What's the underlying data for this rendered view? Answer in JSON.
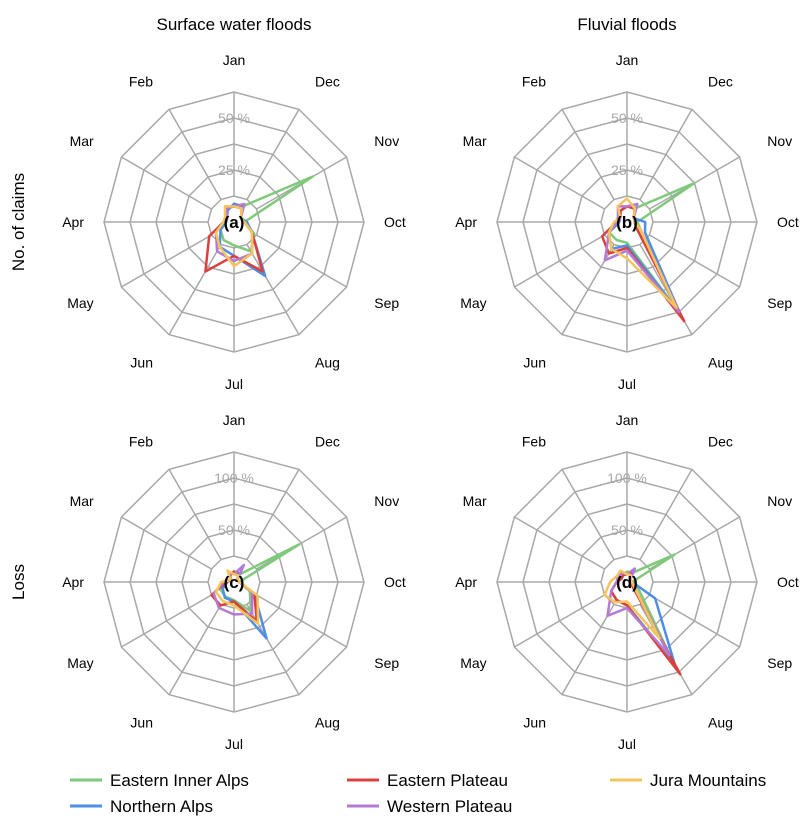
{
  "col_titles": [
    "Surface water floods",
    "Fluvial floods"
  ],
  "row_titles": [
    "No. of claims",
    "Loss"
  ],
  "months": [
    "Jan",
    "Feb",
    "Mar",
    "Apr",
    "May",
    "Jun",
    "Jul",
    "Aug",
    "Sep",
    "Oct",
    "Nov",
    "Dec"
  ],
  "colors": {
    "Eastern Inner Alps": "#7ec97a",
    "Northern Alps": "#4e8ee6",
    "Eastern Plateau": "#d9413f",
    "Western Plateau": "#b57ad4",
    "Jura Mountains": "#f5c45a"
  },
  "legend": [
    "Eastern Inner Alps",
    "Northern Alps",
    "Eastern Plateau",
    "Western Plateau",
    "Jura Mountains"
  ],
  "chart_data": [
    {
      "type": "radar",
      "panel_label": "(a)",
      "title": "Surface water floods",
      "ylabel": "No. of claims",
      "categories": [
        "Jan",
        "Feb",
        "Mar",
        "Apr",
        "May",
        "Jun",
        "Jul",
        "Aug",
        "Sep",
        "Oct",
        "Nov",
        "Dec"
      ],
      "ylim": [
        0,
        50
      ],
      "tick_labels": [
        "25 %",
        "50 %"
      ],
      "series": [
        {
          "name": "Eastern Inner Alps",
          "values": [
            7,
            5,
            3,
            3,
            6,
            8,
            9,
            13,
            9,
            4,
            35,
            7
          ]
        },
        {
          "name": "Northern Alps",
          "values": [
            7,
            5,
            3,
            3,
            6,
            11,
            13,
            24,
            8,
            5,
            3,
            7
          ]
        },
        {
          "name": "Eastern Plateau",
          "values": [
            6,
            6,
            3,
            4,
            11,
            22,
            13,
            22,
            8,
            4,
            3,
            6
          ]
        },
        {
          "name": "Western Plateau",
          "values": [
            6,
            6,
            3,
            4,
            8,
            13,
            15,
            14,
            8,
            4,
            3,
            8
          ]
        },
        {
          "name": "Jura Mountains",
          "values": [
            6,
            7,
            4,
            4,
            8,
            11,
            17,
            14,
            8,
            4,
            3,
            6
          ]
        }
      ]
    },
    {
      "type": "radar",
      "panel_label": "(b)",
      "title": "Fluvial floods",
      "ylabel": "No. of claims",
      "categories": [
        "Jan",
        "Feb",
        "Mar",
        "Apr",
        "May",
        "Jun",
        "Jul",
        "Aug",
        "Sep",
        "Oct",
        "Nov",
        "Dec"
      ],
      "ylim": [
        0,
        50
      ],
      "tick_labels": [
        "25 %",
        "50 %"
      ],
      "series": [
        {
          "name": "Eastern Inner Alps",
          "values": [
            6,
            5,
            3,
            3,
            8,
            8,
            8,
            40,
            6,
            4,
            30,
            6
          ]
        },
        {
          "name": "Northern Alps",
          "values": [
            6,
            5,
            3,
            3,
            8,
            12,
            9,
            41,
            8,
            7,
            3,
            6
          ]
        },
        {
          "name": "Eastern Plateau",
          "values": [
            6,
            5,
            3,
            4,
            11,
            14,
            10,
            44,
            4,
            3,
            3,
            6
          ]
        },
        {
          "name": "Western Plateau",
          "values": [
            6,
            7,
            4,
            4,
            8,
            17,
            11,
            40,
            6,
            3,
            3,
            8
          ]
        },
        {
          "name": "Jura Mountains",
          "values": [
            9,
            7,
            3,
            5,
            8,
            12,
            14,
            38,
            6,
            3,
            3,
            6
          ]
        }
      ]
    },
    {
      "type": "radar",
      "panel_label": "(c)",
      "title": "Surface water floods",
      "ylabel": "Loss",
      "categories": [
        "Jan",
        "Feb",
        "Mar",
        "Apr",
        "May",
        "Jun",
        "Jul",
        "Aug",
        "Sep",
        "Oct",
        "Nov",
        "Dec"
      ],
      "ylim": [
        0,
        100
      ],
      "tick_labels": [
        "50 %",
        "100 %"
      ],
      "series": [
        {
          "name": "Eastern Inner Alps",
          "values": [
            8,
            6,
            3,
            5,
            12,
            13,
            14,
            26,
            14,
            4,
            58,
            6
          ]
        },
        {
          "name": "Northern Alps",
          "values": [
            8,
            6,
            3,
            5,
            10,
            14,
            15,
            50,
            18,
            4,
            3,
            8
          ]
        },
        {
          "name": "Eastern Plateau",
          "values": [
            8,
            6,
            3,
            6,
            20,
            21,
            15,
            35,
            18,
            4,
            3,
            6
          ]
        },
        {
          "name": "Western Plateau",
          "values": [
            6,
            8,
            3,
            8,
            18,
            23,
            25,
            28,
            16,
            4,
            3,
            15
          ]
        },
        {
          "name": "Jura Mountains",
          "values": [
            6,
            10,
            3,
            10,
            16,
            17,
            18,
            37,
            21,
            4,
            3,
            6
          ]
        }
      ]
    },
    {
      "type": "radar",
      "panel_label": "(d)",
      "title": "Fluvial floods",
      "ylabel": "Loss",
      "categories": [
        "Jan",
        "Feb",
        "Mar",
        "Apr",
        "May",
        "Jun",
        "Jul",
        "Aug",
        "Sep",
        "Oct",
        "Nov",
        "Dec"
      ],
      "ylim": [
        0,
        100
      ],
      "tick_labels": [
        "50 %",
        "100 %"
      ],
      "series": [
        {
          "name": "Eastern Inner Alps",
          "values": [
            8,
            6,
            5,
            8,
            14,
            16,
            18,
            70,
            10,
            4,
            42,
            8
          ]
        },
        {
          "name": "Northern Alps",
          "values": [
            6,
            6,
            5,
            8,
            14,
            16,
            18,
            74,
            25,
            4,
            3,
            8
          ]
        },
        {
          "name": "Eastern Plateau",
          "values": [
            6,
            6,
            5,
            8,
            14,
            16,
            18,
            82,
            4,
            3,
            3,
            8
          ]
        },
        {
          "name": "Western Plateau",
          "values": [
            6,
            8,
            8,
            8,
            14,
            30,
            20,
            65,
            6,
            3,
            3,
            12
          ]
        },
        {
          "name": "Jura Mountains",
          "values": [
            6,
            10,
            9,
            13,
            20,
            18,
            15,
            50,
            6,
            4,
            3,
            6
          ]
        }
      ]
    }
  ]
}
